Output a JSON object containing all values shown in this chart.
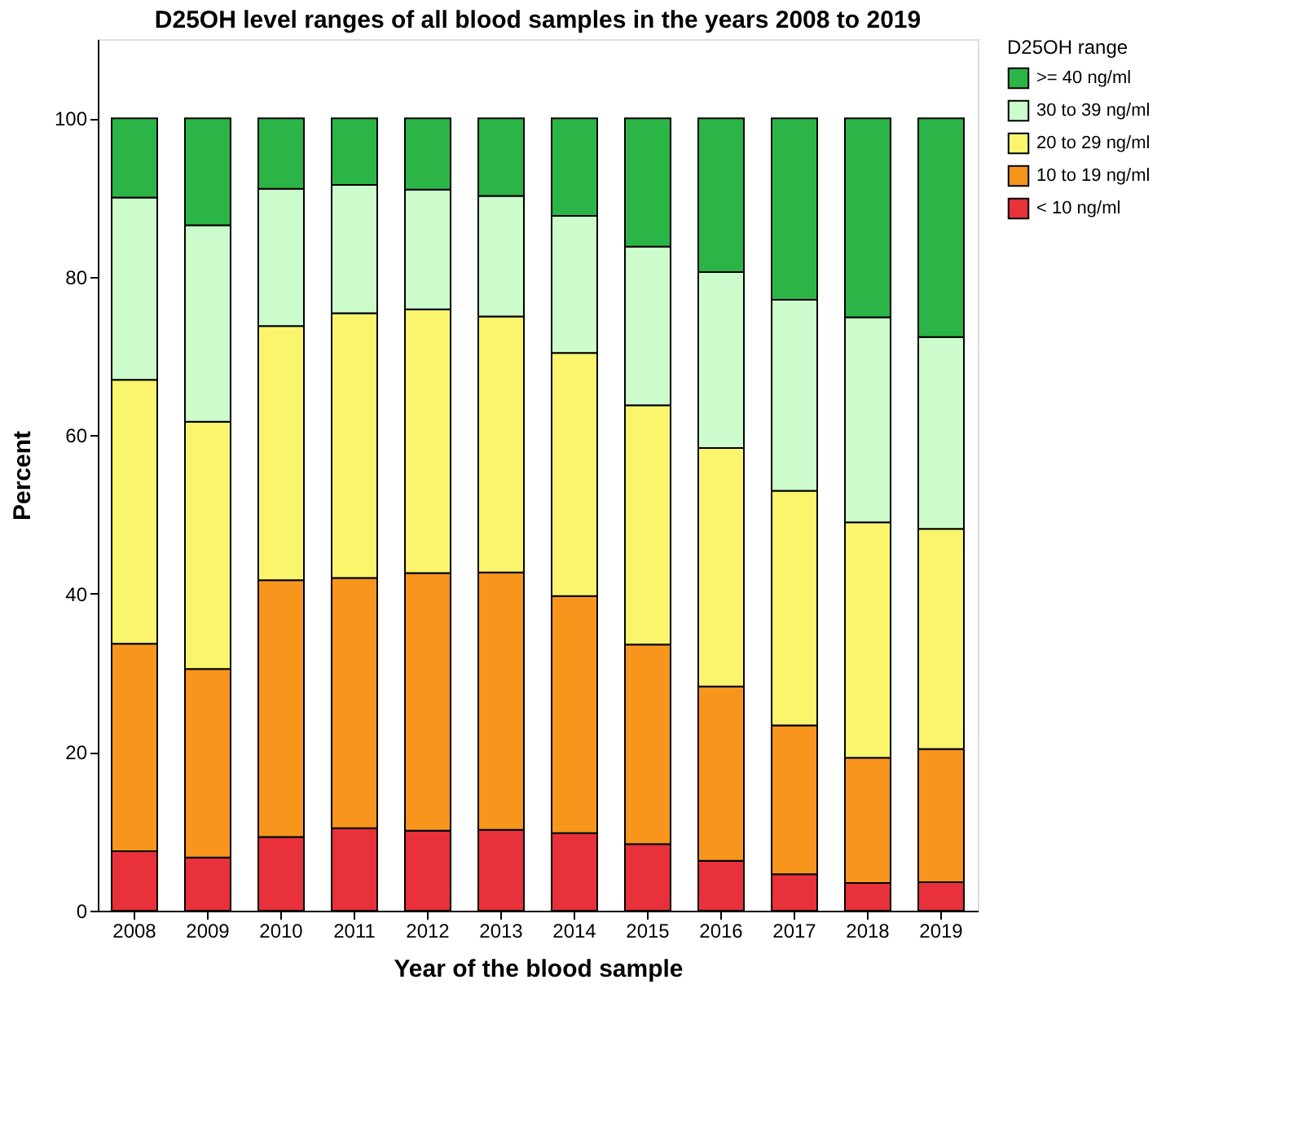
{
  "chart_data": {
    "type": "bar",
    "stacked": true,
    "title": "D25OH level ranges of all blood samples in the years 2008 to 2019",
    "xlabel": "Year of the blood sample",
    "ylabel": "Percent",
    "legend_title": "D25OH range",
    "categories": [
      "2008",
      "2009",
      "2010",
      "2011",
      "2012",
      "2013",
      "2014",
      "2015",
      "2016",
      "2017",
      "2018",
      "2019"
    ],
    "series": [
      {
        "name": "< 10 ng/ml",
        "color": "#e8313a",
        "values": [
          7.5,
          6.7,
          9.3,
          10.4,
          10.1,
          10.2,
          9.8,
          8.4,
          6.3,
          4.6,
          3.5,
          3.6
        ]
      },
      {
        "name": "10 to 19 ng/ml",
        "color": "#f7951d",
        "values": [
          26.2,
          23.8,
          32.4,
          31.6,
          32.5,
          32.5,
          29.9,
          25.2,
          22.0,
          18.8,
          15.8,
          16.8
        ]
      },
      {
        "name": "20 to 29 ng/ml",
        "color": "#fbf56e",
        "values": [
          33.3,
          31.2,
          32.1,
          33.4,
          33.3,
          32.3,
          30.7,
          30.2,
          30.1,
          29.6,
          29.7,
          27.8
        ]
      },
      {
        "name": "30 to 39 ng/ml",
        "color": "#ccfbcc",
        "values": [
          23.0,
          24.8,
          17.3,
          16.2,
          15.1,
          15.2,
          17.3,
          20.0,
          22.2,
          24.1,
          25.9,
          24.2
        ]
      },
      {
        "name": ">= 40 ng/ml",
        "color": "#2bb546",
        "values": [
          10.0,
          13.5,
          8.9,
          8.4,
          9.0,
          9.8,
          12.3,
          16.2,
          19.4,
          22.9,
          25.1,
          27.6
        ]
      }
    ],
    "ylim": [
      0,
      110
    ],
    "yticks": [
      0,
      20,
      40,
      60,
      80,
      100
    ],
    "grid": false,
    "legend": "right"
  }
}
